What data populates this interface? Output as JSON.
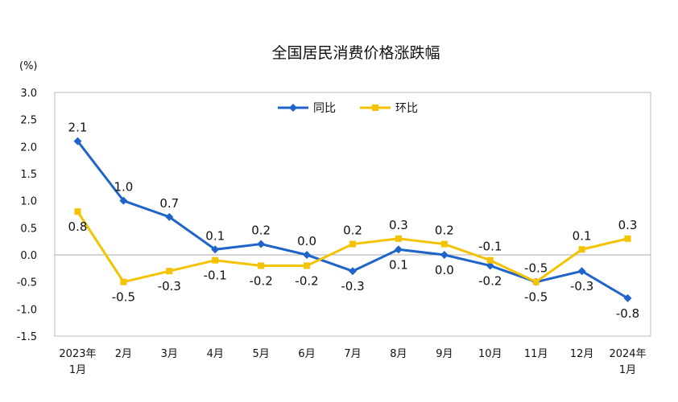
{
  "chart_data": {
    "type": "line",
    "title": "全国居民消费价格涨跌幅",
    "ylabel": "(%)",
    "ylim": [
      -1.5,
      3.0
    ],
    "yticks": [
      "3.0",
      "2.5",
      "2.0",
      "1.5",
      "1.0",
      "0.5",
      "0.0",
      "-0.5",
      "-1.0",
      "-1.5"
    ],
    "categories": [
      [
        "2023年",
        "1月"
      ],
      [
        "2月"
      ],
      [
        "3月"
      ],
      [
        "4月"
      ],
      [
        "5月"
      ],
      [
        "6月"
      ],
      [
        "7月"
      ],
      [
        "8月"
      ],
      [
        "9月"
      ],
      [
        "10月"
      ],
      [
        "11月"
      ],
      [
        "12月"
      ],
      [
        "2024年",
        "1月"
      ]
    ],
    "legend_position": "top-center",
    "grid": false,
    "series": [
      {
        "name": "同比",
        "color": "#1f64c8",
        "marker": "diamond",
        "values": [
          2.1,
          1.0,
          0.7,
          0.1,
          0.2,
          0.0,
          -0.3,
          0.1,
          0.0,
          -0.2,
          -0.5,
          -0.3,
          -0.8
        ],
        "labels": [
          "2.1",
          "1.0",
          "0.7",
          "0.1",
          "0.2",
          "0.0",
          "-0.3",
          "0.1",
          "0.0",
          "-0.2",
          "-0.5",
          "-0.3",
          "-0.8"
        ]
      },
      {
        "name": "环比",
        "color": "#f5c200",
        "marker": "square",
        "values": [
          0.8,
          -0.5,
          -0.3,
          -0.1,
          -0.2,
          -0.2,
          0.2,
          0.3,
          0.2,
          -0.1,
          -0.5,
          0.1,
          0.3
        ],
        "labels": [
          "0.8",
          "-0.5",
          "-0.3",
          "-0.1",
          "-0.2",
          "-0.2",
          "0.2",
          "0.3",
          "0.2",
          "-0.1",
          "-0.5",
          "0.1",
          "0.3"
        ]
      }
    ]
  }
}
